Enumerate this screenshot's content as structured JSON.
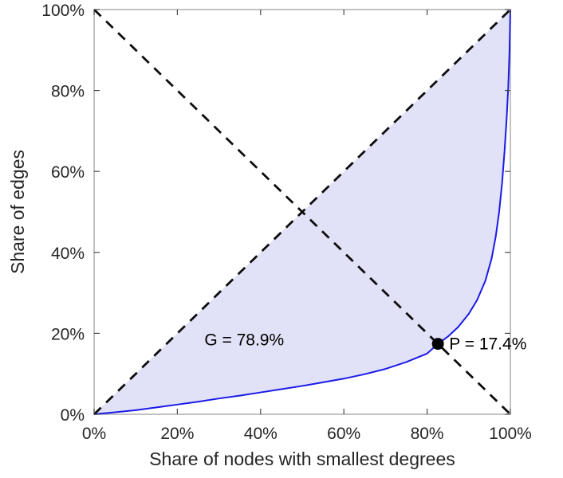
{
  "chart_data": {
    "type": "line",
    "title": "",
    "xlabel": "Share of nodes with smallest degrees",
    "ylabel": "Share of edges",
    "xlim": [
      0,
      100
    ],
    "ylim": [
      0,
      100
    ],
    "x_ticks": [
      0,
      20,
      40,
      60,
      80,
      100
    ],
    "y_ticks": [
      0,
      20,
      40,
      60,
      80,
      100
    ],
    "tick_suffix": "%",
    "grid": false,
    "legend": "none",
    "series": [
      {
        "name": "lorenz-curve",
        "style": "solid",
        "color": "#1a1ae8",
        "x": [
          0,
          5,
          10,
          15,
          20,
          25,
          30,
          35,
          40,
          45,
          50,
          55,
          60,
          65,
          70,
          75,
          80,
          82.6,
          85,
          87.5,
          90,
          92,
          94,
          95.5,
          96.5,
          97.3,
          98,
          98.6,
          99.1,
          99.5,
          99.8,
          100
        ],
        "y": [
          0,
          0.5,
          1.0,
          1.7,
          2.4,
          3.1,
          3.9,
          4.6,
          5.4,
          6.2,
          7.0,
          7.9,
          8.8,
          9.9,
          11.2,
          12.9,
          15.0,
          17.4,
          19.2,
          21.6,
          24.8,
          28.2,
          33,
          38.5,
          44,
          50,
          57,
          65,
          73,
          81,
          90,
          100
        ]
      },
      {
        "name": "equality-diagonal",
        "style": "dashed",
        "color": "#0d0d0d",
        "x": [
          0,
          100
        ],
        "y": [
          0,
          100
        ]
      },
      {
        "name": "anti-diagonal",
        "style": "dashed",
        "color": "#0d0d0d",
        "x": [
          0,
          100
        ],
        "y": [
          100,
          0
        ]
      }
    ],
    "fill_between": {
      "between": [
        "equality-diagonal",
        "lorenz-curve"
      ],
      "color": "#e1e1f7"
    },
    "point": {
      "name": "pareto-point",
      "x": 82.6,
      "y": 17.4,
      "color": "#000000"
    },
    "annotations": [
      {
        "text": "G = 78.9%",
        "x": 26.5,
        "y": 17.0,
        "anchor": "start"
      },
      {
        "text": "P = 17.4%",
        "x": 85.3,
        "y": 16.0,
        "anchor": "start"
      }
    ],
    "gini_percent": 78.9,
    "pareto_percent": 17.4
  }
}
